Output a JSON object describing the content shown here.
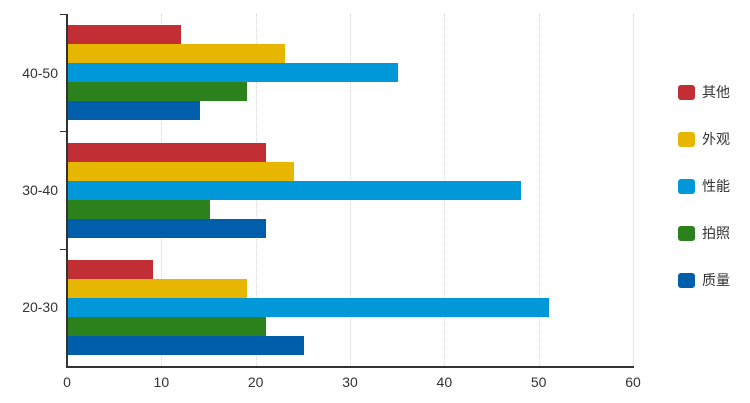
{
  "chart_data": {
    "type": "bar",
    "orientation": "horizontal",
    "title": "",
    "categories": [
      "40-50",
      "30-40",
      "20-30"
    ],
    "series": [
      {
        "name": "其他",
        "color": "#c12e34",
        "values": [
          12,
          21,
          9
        ]
      },
      {
        "name": "外观",
        "color": "#e6b600",
        "values": [
          23,
          24,
          19
        ]
      },
      {
        "name": "性能",
        "color": "#0098d9",
        "values": [
          35,
          48,
          51
        ]
      },
      {
        "name": "拍照",
        "color": "#2b821d",
        "values": [
          19,
          15,
          21
        ]
      },
      {
        "name": "质量",
        "color": "#005eaa",
        "values": [
          14,
          21,
          25
        ]
      }
    ],
    "x_axis": {
      "min": 0,
      "max": 60,
      "ticks": [
        0,
        10,
        20,
        30,
        40,
        50,
        60
      ],
      "grid": "dotted vertical lines at each tick"
    },
    "legend": {
      "position": "right",
      "orientation": "vertical",
      "items": [
        "其他",
        "外观",
        "性能",
        "拍照",
        "质量"
      ]
    },
    "style_colors": {
      "axis": "#333333",
      "grid": "#d6d6d6",
      "text": "#333333",
      "background": "#ffffff"
    }
  }
}
